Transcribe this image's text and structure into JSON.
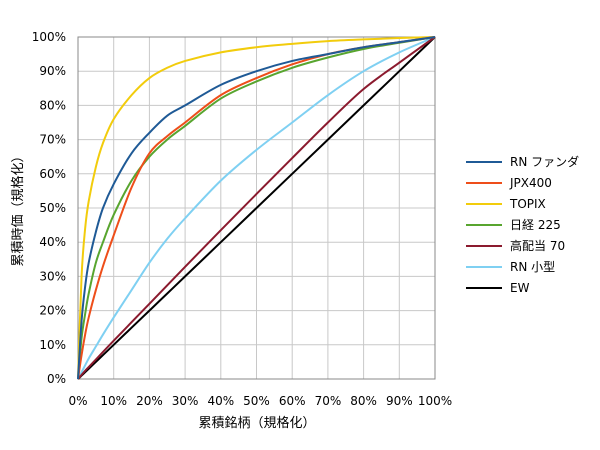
{
  "chart_data": {
    "type": "line",
    "xlabel": "累積銘柄（規格化）",
    "ylabel": "累積時価（規格化）",
    "xlim": [
      0,
      100
    ],
    "ylim": [
      0,
      100
    ],
    "x_ticks": [
      "0%",
      "10%",
      "20%",
      "30%",
      "40%",
      "50%",
      "60%",
      "70%",
      "80%",
      "90%",
      "100%"
    ],
    "y_ticks": [
      "0%",
      "10%",
      "20%",
      "30%",
      "40%",
      "50%",
      "60%",
      "70%",
      "80%",
      "90%",
      "100%"
    ],
    "grid": true,
    "legend_position": "right",
    "x": [
      0,
      1,
      2,
      3,
      5,
      7,
      10,
      15,
      20,
      25,
      30,
      40,
      50,
      60,
      70,
      80,
      90,
      100
    ],
    "series": [
      {
        "name": "RN ファンダ",
        "color": "#1f5a96",
        "values": [
          0,
          17,
          27,
          34,
          43,
          50,
          57,
          66,
          72,
          77,
          80,
          86,
          90,
          93,
          95,
          97,
          98.5,
          100
        ]
      },
      {
        "name": "JPX400",
        "color": "#ee4e1a",
        "values": [
          0,
          7,
          13,
          18,
          26,
          33,
          42,
          56,
          66,
          71,
          75,
          83,
          88,
          92,
          95,
          97,
          98.5,
          100
        ]
      },
      {
        "name": "TOPIX",
        "color": "#f2cc0c",
        "values": [
          0,
          30,
          44,
          52,
          62,
          69,
          76,
          83,
          88,
          91,
          93,
          95.5,
          97,
          98,
          98.8,
          99.3,
          99.7,
          100
        ]
      },
      {
        "name": "日経 225",
        "color": "#58a52f",
        "values": [
          0,
          12,
          19,
          25,
          34,
          40,
          48,
          58,
          65,
          70,
          74,
          82,
          87,
          91,
          94,
          96.5,
          98.3,
          100
        ]
      },
      {
        "name": "高配当 70",
        "color": "#8b1a2e",
        "values": [
          0,
          1.2,
          2.4,
          3.5,
          5.7,
          7.9,
          11.2,
          16.6,
          22,
          27.4,
          32.8,
          43.5,
          54.1,
          64.6,
          75,
          84.8,
          92.5,
          100
        ]
      },
      {
        "name": "RN 小型",
        "color": "#7fd0f2",
        "values": [
          0,
          2,
          4,
          6,
          9.5,
          13,
          18,
          26,
          34,
          41,
          47,
          58,
          67,
          75,
          83,
          90,
          95.5,
          100
        ]
      },
      {
        "name": "EW",
        "color": "#000000",
        "values": [
          0,
          1,
          2,
          3,
          5,
          7,
          10,
          15,
          20,
          25,
          30,
          40,
          50,
          60,
          70,
          80,
          90,
          100
        ]
      }
    ]
  }
}
